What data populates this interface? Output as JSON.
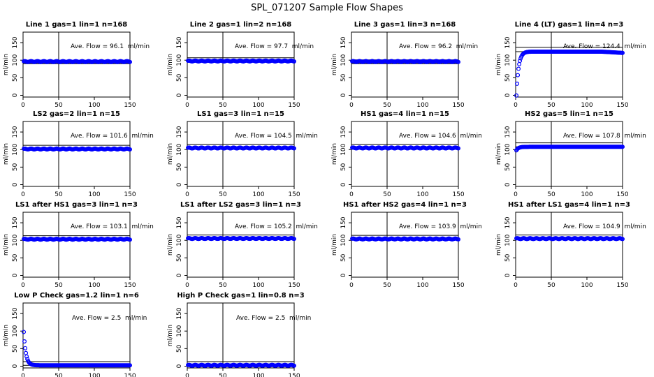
{
  "figure_title": "SPL_071207  Sample Flow Shapes",
  "colors": {
    "points": "#0000ff",
    "axes": "#000000",
    "background": "#ffffff"
  },
  "chart_data": [
    {
      "type": "scatter",
      "title": "Line 1 gas=1 lin=1 n=168",
      "ylabel": "ml/min",
      "xlim": [
        0,
        150
      ],
      "ylim": [
        -5,
        180
      ],
      "xticks": [
        0,
        50,
        100,
        150
      ],
      "yticks": [
        0,
        50,
        100,
        150
      ],
      "vline_x": 50,
      "avg_flow": 96.1,
      "annotation": "Ave. Flow = 96.1  ml/min",
      "hlines": [
        96.1,
        90
      ],
      "shape": "flat"
    },
    {
      "type": "scatter",
      "title": "Line 2 gas=1 lin=2 n=168",
      "ylabel": "ml/min",
      "xlim": [
        0,
        150
      ],
      "ylim": [
        -5,
        180
      ],
      "xticks": [
        0,
        50,
        100,
        150
      ],
      "yticks": [
        0,
        50,
        100,
        150
      ],
      "vline_x": 50,
      "avg_flow": 97.7,
      "annotation": "Ave. Flow = 97.7  ml/min",
      "hlines": [
        107,
        97.7
      ],
      "shape": "flat"
    },
    {
      "type": "scatter",
      "title": "Line 3 gas=1 lin=3 n=168",
      "ylabel": "ml/min",
      "xlim": [
        0,
        150
      ],
      "ylim": [
        -5,
        180
      ],
      "xticks": [
        0,
        50,
        100,
        150
      ],
      "yticks": [
        0,
        50,
        100,
        150
      ],
      "vline_x": 50,
      "avg_flow": 96.2,
      "annotation": "Ave. Flow = 96.2  ml/min",
      "hlines": [
        101,
        90
      ],
      "shape": "flat"
    },
    {
      "type": "scatter",
      "title": "Line 4 (LT) gas=1 lin=4 n=3",
      "ylabel": "ml/min",
      "xlim": [
        0,
        150
      ],
      "ylim": [
        -5,
        180
      ],
      "xticks": [
        0,
        50,
        100,
        150
      ],
      "yticks": [
        0,
        50,
        100,
        150
      ],
      "vline_x": 50,
      "avg_flow": 124.4,
      "annotation": "Ave. Flow = 124.4  ml/min",
      "hlines": [
        137,
        124.4
      ],
      "shape": "rise"
    },
    {
      "type": "scatter",
      "title": "LS2 gas=2 lin=1 n=15",
      "ylabel": "ml/min",
      "xlim": [
        0,
        150
      ],
      "ylim": [
        -5,
        180
      ],
      "xticks": [
        0,
        50,
        100,
        150
      ],
      "yticks": [
        0,
        50,
        100,
        150
      ],
      "vline_x": 50,
      "avg_flow": 101.6,
      "annotation": "Ave. Flow = 101.6  ml/min",
      "hlines": [
        112,
        101.6
      ],
      "shape": "flat"
    },
    {
      "type": "scatter",
      "title": "LS1 gas=3 lin=1 n=15",
      "ylabel": "ml/min",
      "xlim": [
        0,
        150
      ],
      "ylim": [
        -5,
        180
      ],
      "xticks": [
        0,
        50,
        100,
        150
      ],
      "yticks": [
        0,
        50,
        100,
        150
      ],
      "vline_x": 50,
      "avg_flow": 104.5,
      "annotation": "Ave. Flow = 104.5  ml/min",
      "hlines": [
        115,
        104.5
      ],
      "shape": "flat"
    },
    {
      "type": "scatter",
      "title": "HS1 gas=4 lin=1 n=15",
      "ylabel": "ml/min",
      "xlim": [
        0,
        150
      ],
      "ylim": [
        -5,
        180
      ],
      "xticks": [
        0,
        50,
        100,
        150
      ],
      "yticks": [
        0,
        50,
        100,
        150
      ],
      "vline_x": 50,
      "avg_flow": 104.6,
      "annotation": "Ave. Flow = 104.6  ml/min",
      "hlines": [
        115,
        104.6
      ],
      "shape": "flat"
    },
    {
      "type": "scatter",
      "title": "HS2 gas=5 lin=1 n=15",
      "ylabel": "ml/min",
      "xlim": [
        0,
        150
      ],
      "ylim": [
        -5,
        180
      ],
      "xticks": [
        0,
        50,
        100,
        150
      ],
      "yticks": [
        0,
        50,
        100,
        150
      ],
      "vline_x": 50,
      "avg_flow": 107.8,
      "annotation": "Ave. Flow = 107.8  ml/min",
      "hlines": [
        119,
        107.8
      ],
      "shape": "slight_rise"
    },
    {
      "type": "scatter",
      "title": "LS1 after HS1 gas=3 lin=1 n=3",
      "ylabel": "ml/min",
      "xlim": [
        0,
        150
      ],
      "ylim": [
        -5,
        180
      ],
      "xticks": [
        0,
        50,
        100,
        150
      ],
      "yticks": [
        0,
        50,
        100,
        150
      ],
      "vline_x": 50,
      "avg_flow": 103.1,
      "annotation": "Ave. Flow = 103.1  ml/min",
      "hlines": [
        113,
        103.1
      ],
      "shape": "flat"
    },
    {
      "type": "scatter",
      "title": "LS1 after LS2 gas=3 lin=1 n=3",
      "ylabel": "ml/min",
      "xlim": [
        0,
        150
      ],
      "ylim": [
        -5,
        180
      ],
      "xticks": [
        0,
        50,
        100,
        150
      ],
      "yticks": [
        0,
        50,
        100,
        150
      ],
      "vline_x": 50,
      "avg_flow": 105.2,
      "annotation": "Ave. Flow = 105.2  ml/min",
      "hlines": [
        115,
        105.2
      ],
      "shape": "flat"
    },
    {
      "type": "scatter",
      "title": "HS1 after HS2 gas=4 lin=1 n=3",
      "ylabel": "ml/min",
      "xlim": [
        0,
        150
      ],
      "ylim": [
        -5,
        180
      ],
      "xticks": [
        0,
        50,
        100,
        150
      ],
      "yticks": [
        0,
        50,
        100,
        150
      ],
      "vline_x": 50,
      "avg_flow": 103.9,
      "annotation": "Ave. Flow = 103.9  ml/min",
      "hlines": [
        114,
        103.9
      ],
      "shape": "flat"
    },
    {
      "type": "scatter",
      "title": "HS1 after LS1 gas=4 lin=1 n=3",
      "ylabel": "ml/min",
      "xlim": [
        0,
        150
      ],
      "ylim": [
        -5,
        180
      ],
      "xticks": [
        0,
        50,
        100,
        150
      ],
      "yticks": [
        0,
        50,
        100,
        150
      ],
      "vline_x": 50,
      "avg_flow": 104.9,
      "annotation": "Ave. Flow = 104.9  ml/min",
      "hlines": [
        115,
        104.9
      ],
      "shape": "flat"
    },
    {
      "type": "scatter",
      "title": "Low P Check gas=1.2 lin=1 n=6",
      "ylabel": "ml/min",
      "xlim": [
        0,
        150
      ],
      "ylim": [
        -5,
        180
      ],
      "xticks": [
        0,
        50,
        100,
        150
      ],
      "yticks": [
        0,
        50,
        100,
        150
      ],
      "vline_x": 50,
      "avg_flow": 2.5,
      "annotation": "Ave. Flow = 2.5  ml/min",
      "hlines": [
        13,
        2.5
      ],
      "shape": "decay"
    },
    {
      "type": "scatter",
      "title": "High P Check gas=1 lin=0.8 n=3",
      "ylabel": "ml/min",
      "xlim": [
        0,
        150
      ],
      "ylim": [
        -5,
        180
      ],
      "xticks": [
        0,
        50,
        100,
        150
      ],
      "yticks": [
        0,
        50,
        100,
        150
      ],
      "vline_x": 50,
      "avg_flow": 2.5,
      "annotation": "Ave. Flow = 2.5  ml/min",
      "hlines": [
        13,
        2.5
      ],
      "shape": "flat"
    }
  ]
}
